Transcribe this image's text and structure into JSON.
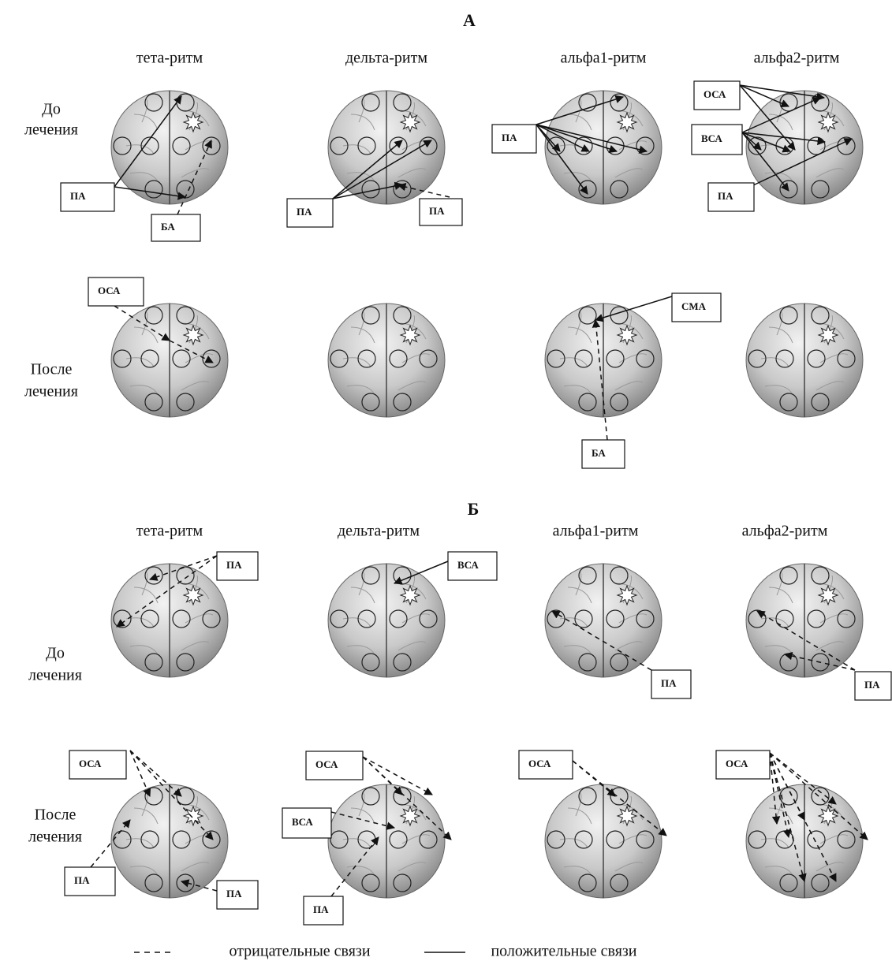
{
  "sections": [
    {
      "title": "А",
      "columns": [
        "тета-ритм",
        "дельта-ритм",
        "альфа1-ритм",
        "альфа2-ритм"
      ],
      "rows": [
        [
          "До",
          "лечения"
        ],
        [
          "После",
          "лечения"
        ]
      ],
      "cells": [
        {
          "boxes": [
            "ПА",
            "БА"
          ]
        },
        {
          "boxes": [
            "ПА",
            "ПА"
          ]
        },
        {
          "boxes": [
            "ПА"
          ]
        },
        {
          "boxes": [
            "ОСА",
            "ВСА",
            "ПА"
          ]
        },
        {
          "boxes": [
            "ОСА"
          ]
        },
        {
          "boxes": []
        },
        {
          "boxes": [
            "СМА",
            "БА"
          ]
        },
        {
          "boxes": []
        }
      ]
    },
    {
      "title": "Б",
      "columns": [
        "тета-ритм",
        "дельта-ритм",
        "альфа1-ритм",
        "альфа2-ритм"
      ],
      "rows": [
        [
          "До",
          "лечения"
        ],
        [
          "После",
          "лечения"
        ]
      ],
      "cells": [
        {
          "boxes": [
            "ПА"
          ]
        },
        {
          "boxes": [
            "ВСА"
          ]
        },
        {
          "boxes": [
            "ПА"
          ]
        },
        {
          "boxes": [
            "ПА"
          ]
        },
        {
          "boxes": [
            "ОСА",
            "ПА",
            "ПА"
          ]
        },
        {
          "boxes": [
            "ОСА",
            "ВСА",
            "ПА"
          ]
        },
        {
          "boxes": [
            "ОСА"
          ]
        },
        {
          "boxes": [
            "ОСА"
          ]
        }
      ]
    }
  ],
  "legend": {
    "negative": "отрицательные  связи",
    "positive": "положительные связи"
  }
}
